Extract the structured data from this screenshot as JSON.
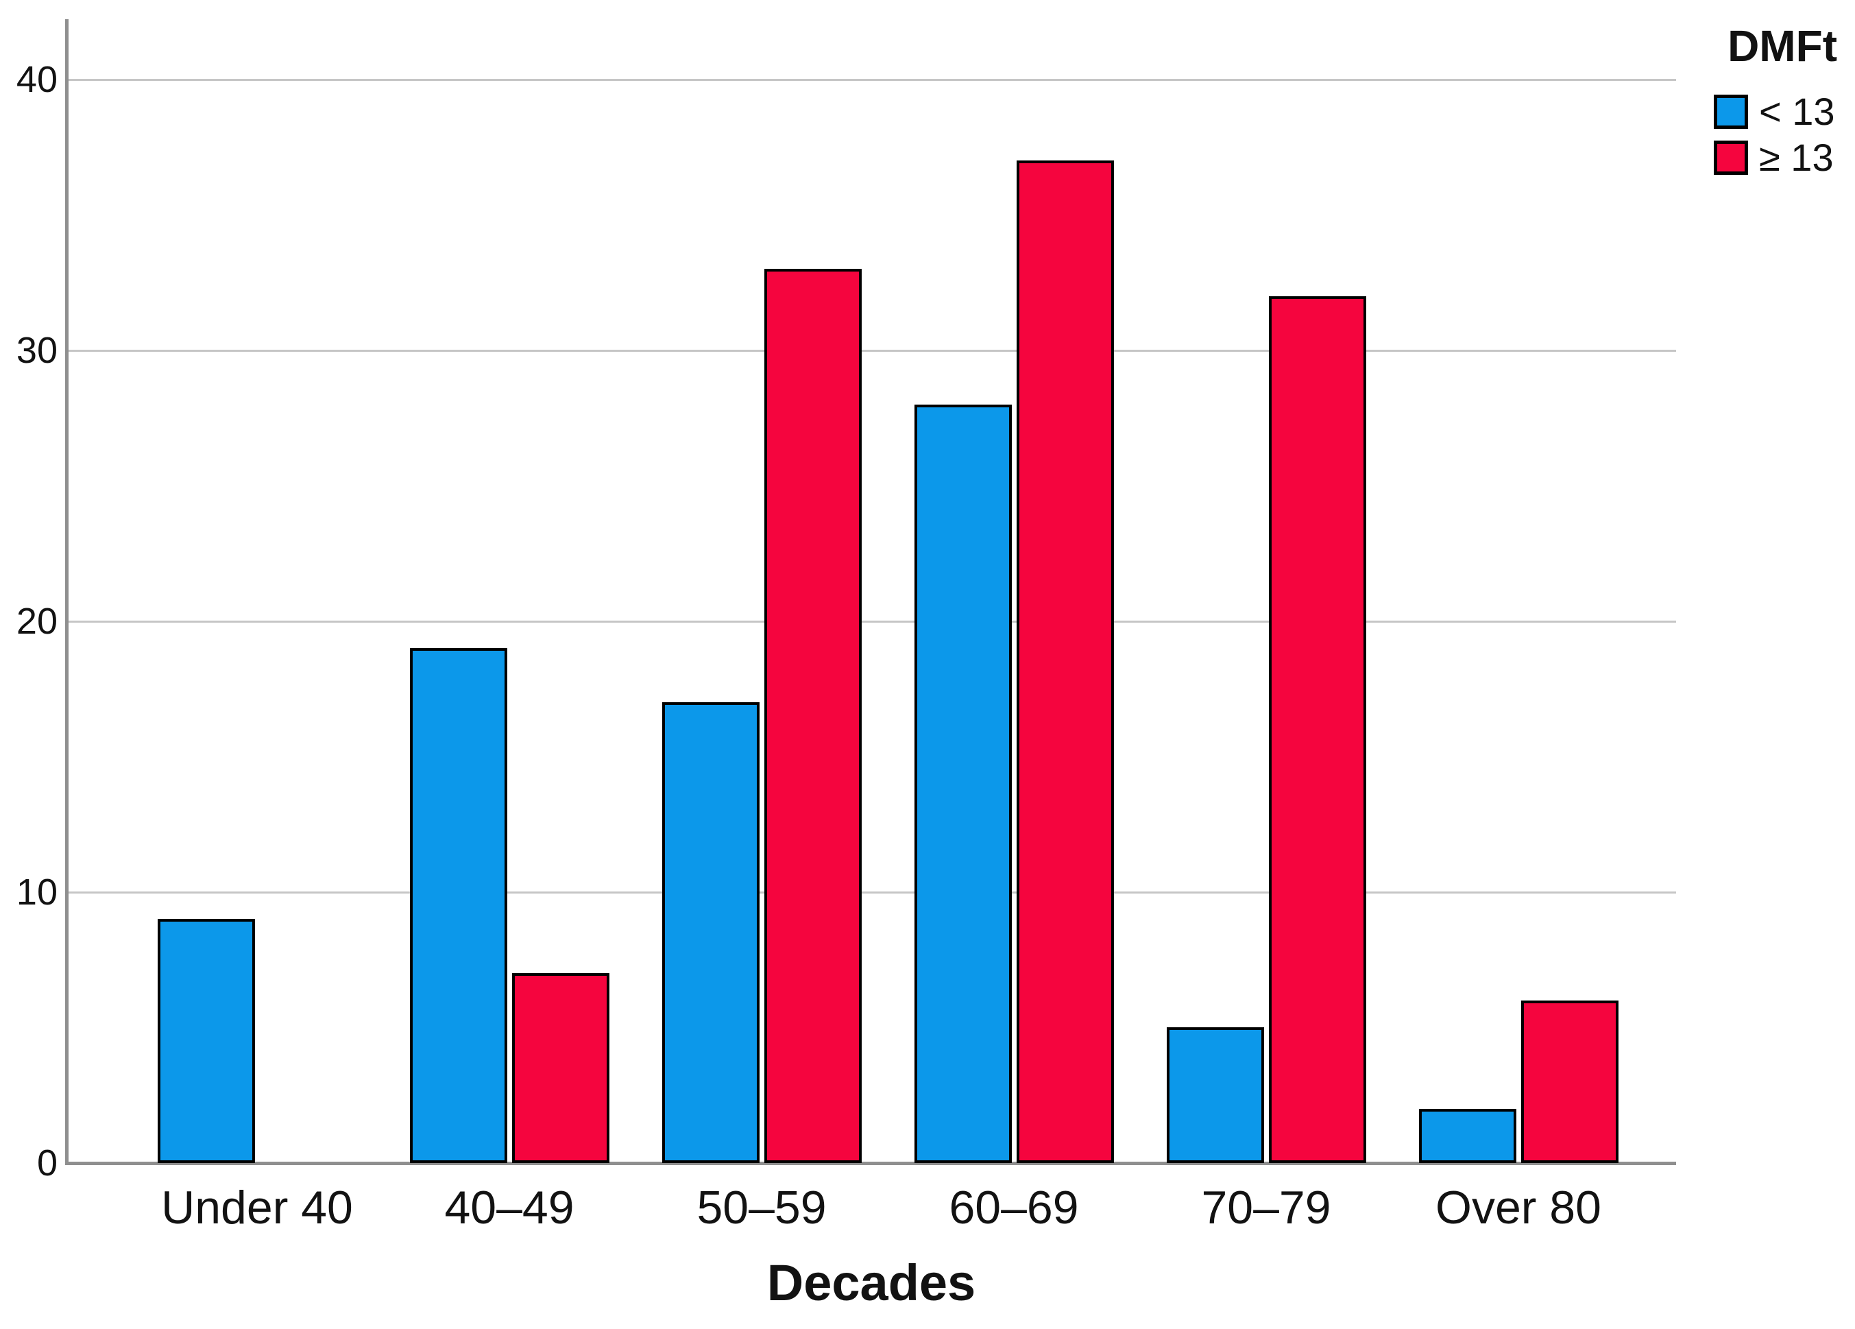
{
  "chart_data": {
    "type": "bar",
    "title": "",
    "xlabel": "Decades",
    "ylabel": "",
    "categories": [
      "Under 40",
      "40–49",
      "50–59",
      "60–69",
      "70–79",
      "Over 80"
    ],
    "series": [
      {
        "name": "< 13",
        "color": "#0c98ea",
        "values": [
          9,
          19,
          17,
          28,
          5,
          2
        ]
      },
      {
        "name": "≥ 13",
        "color": "#f5053e",
        "values": [
          0,
          7,
          33,
          37,
          32,
          6
        ]
      }
    ],
    "ylim": [
      0,
      40
    ],
    "yticks": [
      0,
      10,
      20,
      30,
      40
    ],
    "grid": "horizontal",
    "legend": {
      "title": "DMFt",
      "position": "top-right"
    },
    "colors": {
      "bar_border": "#000000",
      "axis": "#8f8f8f",
      "gridline": "#c6c6c6",
      "text": "#121212",
      "background": "#ffffff"
    }
  }
}
